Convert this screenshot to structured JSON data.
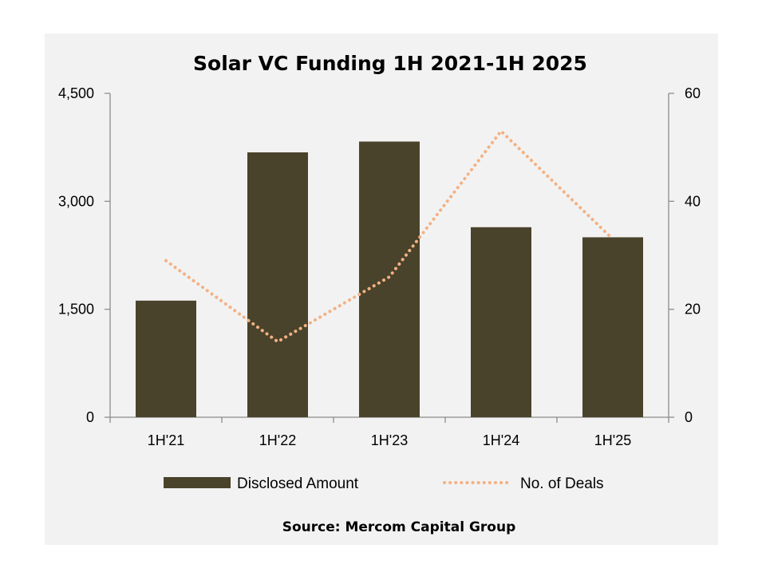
{
  "chart_data": {
    "type": "bar",
    "title": "Solar VC Funding 1H 2021-1H 2025",
    "categories": [
      "1H'21",
      "1H'22",
      "1H'23",
      "1H'24",
      "1H'25"
    ],
    "series": [
      {
        "name": "Disclosed Amount",
        "type": "bar",
        "axis": "left",
        "values": [
          1620,
          3680,
          3830,
          2640,
          2500
        ]
      },
      {
        "name": "No. of Deals",
        "type": "line",
        "axis": "right",
        "style": "dotted",
        "values": [
          29,
          14,
          26,
          53,
          33
        ]
      }
    ],
    "y_left": {
      "ylim": [
        0,
        4500
      ],
      "ticks": [
        "0",
        "1,500",
        "3,000",
        "4,500"
      ],
      "tick_values": [
        0,
        1500,
        3000,
        4500
      ]
    },
    "y_right": {
      "ylim": [
        0,
        60
      ],
      "ticks": [
        "0",
        "20",
        "40",
        "60"
      ],
      "tick_values": [
        0,
        20,
        40,
        60
      ]
    },
    "legend_position": "bottom",
    "source": "Source: Mercom Capital Group",
    "colors": {
      "bar": "#4a432b",
      "line": "#f4b183",
      "axis": "#8c8c8c",
      "background": "#f2f2f2"
    }
  }
}
